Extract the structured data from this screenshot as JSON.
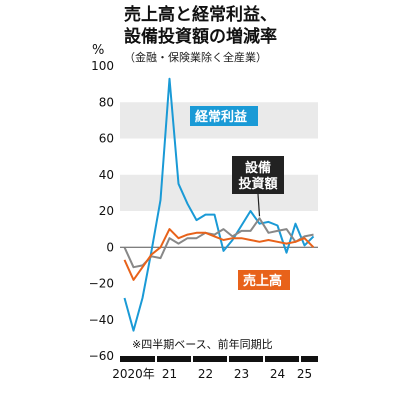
{
  "title": {
    "main_line1": "売上高と経常利益、",
    "main_line2": "設備投資額の増減率",
    "sub": "（金融・保険業除く全産業）"
  },
  "chart_data": {
    "type": "line",
    "unit_label": "%",
    "ylim": [
      -60,
      100
    ],
    "yticks": [
      100,
      80,
      60,
      40,
      20,
      0,
      -20,
      -40,
      -60
    ],
    "ytick_labels": [
      "100",
      "80",
      "60",
      "40",
      "20",
      "0",
      "−20",
      "−40",
      "−60"
    ],
    "x_quarters": 22,
    "xtick_labels": [
      {
        "label": "2020年",
        "quarter": 1.5
      },
      {
        "label": "21",
        "quarter": 5.5
      },
      {
        "label": "22",
        "quarter": 9.5
      },
      {
        "label": "23",
        "quarter": 13.5
      },
      {
        "label": "24",
        "quarter": 17.5
      },
      {
        "label": "25",
        "quarter": 20.5
      }
    ],
    "grid_bands": [
      [
        20,
        40
      ],
      [
        60,
        80
      ]
    ],
    "note": "※四半期ベース、前年同期比",
    "series": [
      {
        "name": "経常利益",
        "color": "#1a9ad6",
        "values": [
          -28,
          -46,
          -28,
          -2,
          26,
          93,
          35,
          24,
          15,
          18,
          18,
          -2,
          4,
          12,
          20,
          13,
          14,
          12,
          -3,
          13,
          1,
          6
        ]
      },
      {
        "name": "設備投資額",
        "color": "#888888",
        "values": [
          0,
          -11,
          -10,
          -5,
          -6,
          5,
          2,
          5,
          5,
          8,
          7,
          10,
          6,
          9,
          9,
          16,
          8,
          9,
          10,
          3,
          6,
          7
        ]
      },
      {
        "name": "売上高",
        "color": "#e8621a",
        "values": [
          -7,
          -18,
          -11,
          -4,
          0,
          10,
          5,
          7,
          8,
          8,
          6,
          4,
          5,
          5,
          4,
          3,
          4,
          3,
          2,
          3,
          5,
          0
        ]
      }
    ],
    "series_labels": {
      "keijo": "経常利益",
      "setsubi_line1": "設備",
      "setsubi_line2": "投資額",
      "uriage": "売上高"
    }
  }
}
